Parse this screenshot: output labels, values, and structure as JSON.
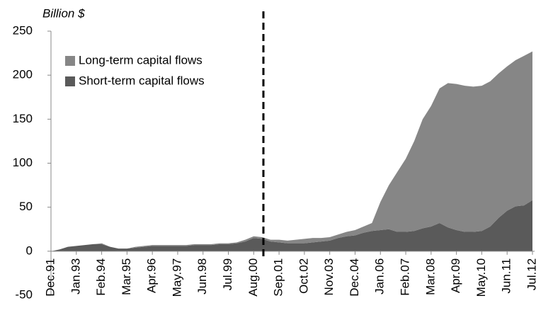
{
  "chart_data": {
    "type": "stacked_area",
    "ylabel": "Billion $",
    "categories": [
      "Dec.91",
      null,
      null,
      "Jan.93",
      null,
      null,
      "Feb.94",
      null,
      null,
      "Mar.95",
      null,
      null,
      "Apr.96",
      null,
      null,
      "May.97",
      null,
      null,
      "Jun.98",
      null,
      null,
      "Jul.99",
      null,
      null,
      "Aug.00",
      null,
      null,
      "Sep.01",
      null,
      null,
      "Oct.02",
      null,
      null,
      "Nov.03",
      null,
      null,
      "Dec.04",
      null,
      null,
      "Jan.06",
      null,
      null,
      "Feb.07",
      null,
      null,
      "Mar.08",
      null,
      null,
      "Apr.09",
      null,
      null,
      "May.10",
      null,
      null,
      "Jun.11",
      null,
      null,
      "Jul.12"
    ],
    "series": [
      {
        "name": "Short-term capital flows",
        "color": "#5a5a5a",
        "values": [
          0,
          2,
          5,
          6,
          7,
          8,
          8,
          5,
          3,
          3,
          4,
          5,
          6,
          6,
          6,
          6,
          6,
          7,
          7,
          7,
          8,
          8,
          9,
          11,
          15,
          14,
          11,
          10,
          9,
          9,
          9,
          10,
          11,
          12,
          15,
          17,
          18,
          21,
          23,
          24,
          25,
          22,
          22,
          23,
          26,
          28,
          32,
          27,
          24,
          22,
          22,
          23,
          28,
          38,
          46,
          51,
          52,
          58
        ]
      },
      {
        "name": "Long-term capital flows",
        "color": "#868686",
        "values": [
          0,
          0,
          0,
          0,
          0,
          0,
          1,
          0,
          0,
          0,
          1,
          1,
          1,
          1,
          1,
          1,
          1,
          1,
          1,
          1,
          1,
          1,
          1,
          2,
          2,
          2,
          2,
          3,
          3,
          4,
          5,
          5,
          4,
          4,
          4,
          5,
          6,
          7,
          9,
          32,
          50,
          68,
          83,
          102,
          124,
          137,
          153,
          164,
          166,
          166,
          165,
          165,
          165,
          164,
          164,
          166,
          170,
          169
        ]
      }
    ],
    "ylim": [
      -50,
      250
    ],
    "yticks": [
      -50,
      0,
      50,
      100,
      150,
      200,
      250
    ],
    "legend": "top-left"
  }
}
